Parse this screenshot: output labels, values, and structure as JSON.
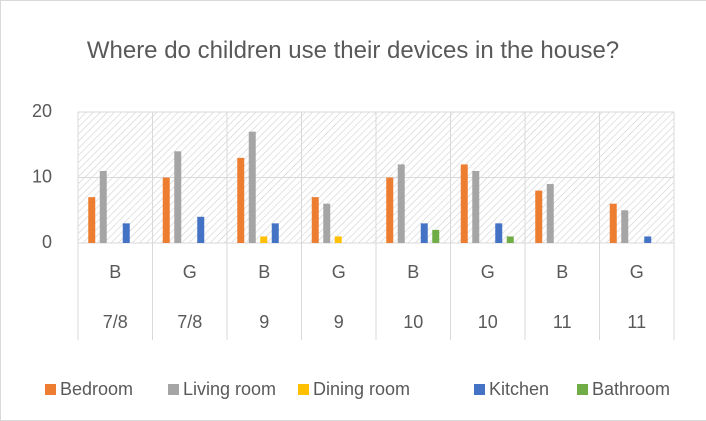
{
  "chart_data": {
    "type": "bar",
    "title": "Where do children use their devices in the house?",
    "categories": [
      "B",
      "G",
      "B",
      "G",
      "B",
      "G",
      "B",
      "G"
    ],
    "groups": [
      "7/8",
      "7/8",
      "9",
      "9",
      "10",
      "10",
      "11",
      "11"
    ],
    "series": [
      {
        "name": "Bedroom",
        "color": "#ed7d31",
        "values": [
          7,
          10,
          13,
          7,
          10,
          12,
          8,
          6
        ]
      },
      {
        "name": "Living room",
        "color": "#a5a5a5",
        "values": [
          11,
          14,
          17,
          6,
          12,
          11,
          9,
          5
        ]
      },
      {
        "name": "Dining room",
        "color": "#ffc000",
        "values": [
          0,
          0,
          1,
          1,
          0,
          0,
          0,
          0
        ]
      },
      {
        "name": "Kitchen",
        "color": "#4472c4",
        "values": [
          3,
          4,
          3,
          0,
          3,
          3,
          0,
          1
        ]
      },
      {
        "name": "Bathroom",
        "color": "#70ad47",
        "values": [
          0,
          0,
          0,
          0,
          2,
          1,
          0,
          0
        ]
      }
    ],
    "ylim": [
      0,
      20
    ],
    "yticks": [
      0,
      10,
      20
    ],
    "grid": true,
    "legend": "bottom"
  }
}
